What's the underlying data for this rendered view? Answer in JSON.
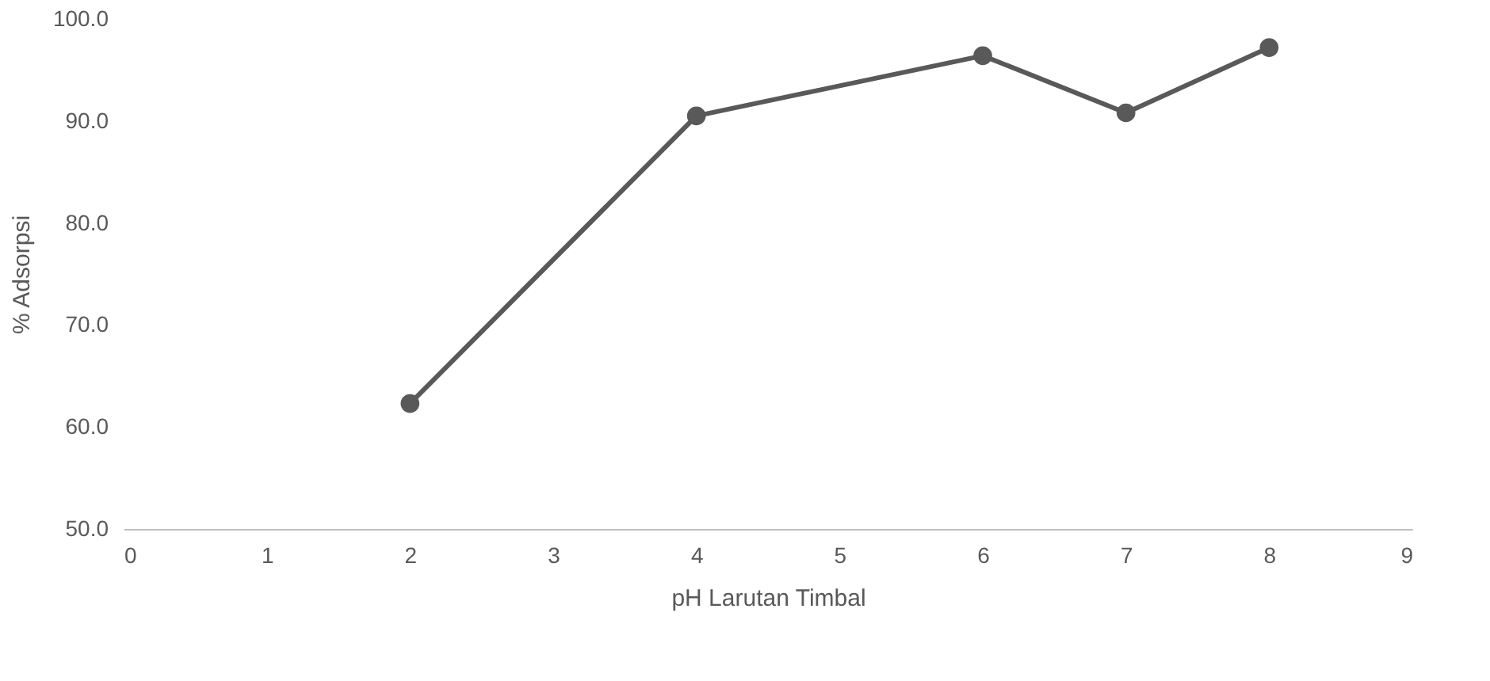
{
  "chart_data": {
    "type": "line",
    "xlabel": "pH Larutan Timbal",
    "ylabel": "% Adsorpsi",
    "x": [
      2,
      4,
      6,
      7,
      8
    ],
    "series": [
      {
        "color": "#595959",
        "values": [
          62.3,
          90.5,
          96.4,
          90.8,
          97.2
        ]
      }
    ],
    "xlim": [
      0,
      9
    ],
    "xticks": [
      0,
      1,
      2,
      3,
      4,
      5,
      6,
      7,
      8,
      9
    ],
    "ylim": [
      50,
      100
    ],
    "yticks": [
      {
        "value": 50,
        "label": "50.0"
      },
      {
        "value": 60,
        "label": "60.0"
      },
      {
        "value": 70,
        "label": "70.0"
      },
      {
        "value": 80,
        "label": "80.0"
      },
      {
        "value": 90,
        "label": "90.0"
      },
      {
        "value": 100,
        "label": "100.0"
      }
    ],
    "grid": false,
    "marker": "circle",
    "line_style": "solid",
    "legend": false
  }
}
